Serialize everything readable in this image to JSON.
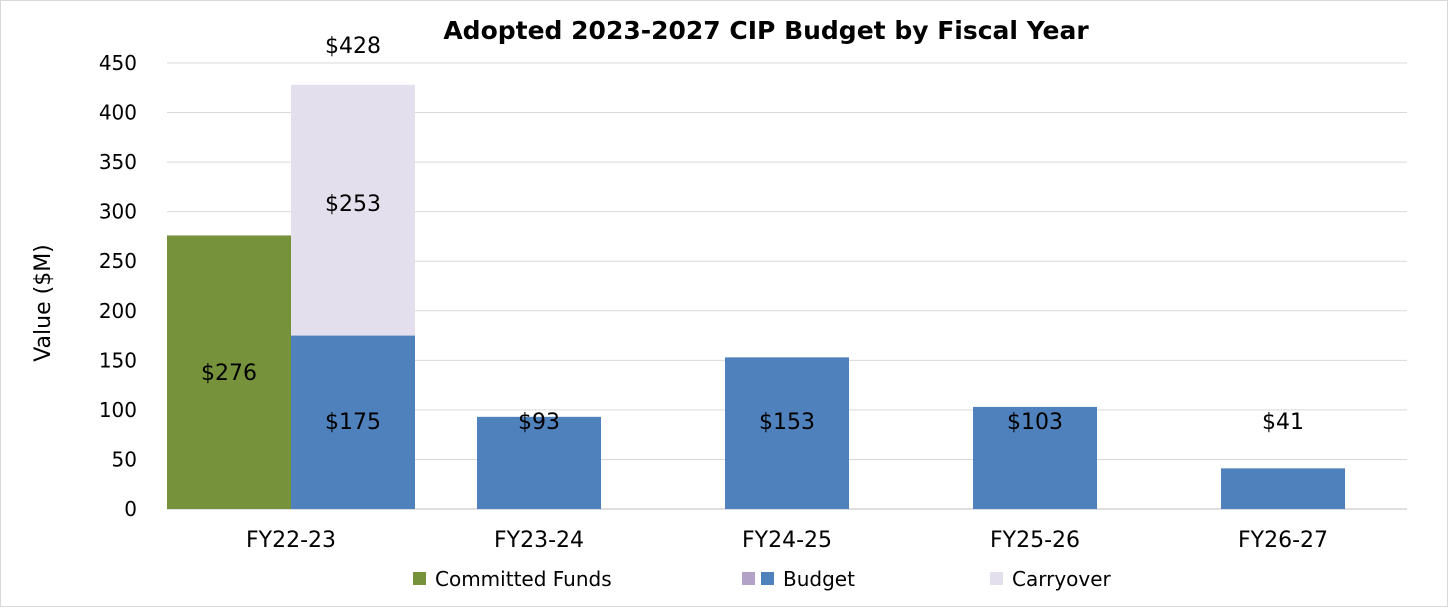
{
  "chart_data": {
    "type": "bar",
    "title": "Adopted 2023-2027 CIP Budget by Fiscal Year",
    "ylabel": "Value ($M)",
    "xlabel": "",
    "ylim": [
      0,
      450
    ],
    "yticks": [
      0,
      50,
      100,
      150,
      200,
      250,
      300,
      350,
      400,
      450
    ],
    "grid": true,
    "legend_position": "bottom",
    "categories": [
      "FY22-23",
      "FY23-24",
      "FY24-25",
      "FY25-26",
      "FY26-27"
    ],
    "series": [
      {
        "name": "Committed Funds",
        "color": "#76933c",
        "values": [
          276,
          null,
          null,
          null,
          null
        ],
        "labels": [
          "$276",
          null,
          null,
          null,
          null
        ]
      },
      {
        "name": "Budget",
        "color": "#4f81bd",
        "values": [
          175,
          93,
          153,
          103,
          41
        ],
        "labels": [
          "$175",
          "$93",
          "$153",
          "$103",
          "$41"
        ]
      },
      {
        "name": "Carryover",
        "color": "#e4dfec",
        "values": [
          253,
          null,
          null,
          null,
          null
        ],
        "labels": [
          "$253",
          null,
          null,
          null,
          null
        ]
      }
    ],
    "stack": [
      [
        "Committed Funds"
      ],
      [
        "Budget",
        "Carryover"
      ]
    ],
    "totals": [
      {
        "category": "FY22-23",
        "label": "$428"
      }
    ],
    "legend": [
      {
        "label": "Committed Funds",
        "swatches": [
          "#76933c"
        ]
      },
      {
        "label": "Budget",
        "swatches": [
          "#b3a2c7",
          "#4f81bd"
        ]
      },
      {
        "label": "Carryover",
        "swatches": [
          "#e4dfec"
        ]
      }
    ]
  }
}
